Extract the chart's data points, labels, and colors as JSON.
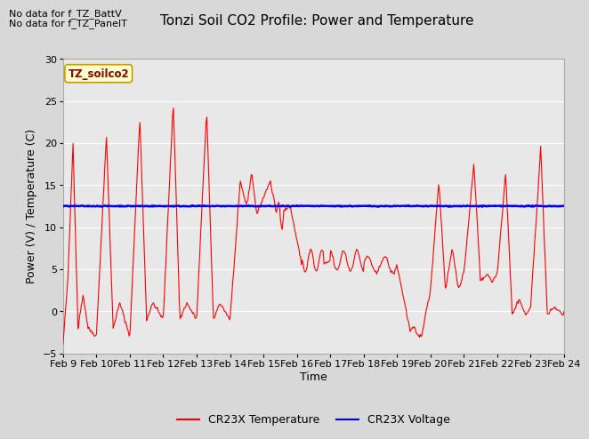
{
  "title": "Tonzi Soil CO2 Profile: Power and Temperature",
  "ylabel": "Power (V) / Temperature (C)",
  "xlabel": "Time",
  "ylim": [
    -5,
    30
  ],
  "yticks": [
    -5,
    0,
    5,
    10,
    15,
    20,
    25,
    30
  ],
  "xtick_labels": [
    "Feb 9",
    "Feb 10",
    "Feb 11",
    "Feb 12",
    "Feb 13",
    "Feb 14",
    "Feb 15",
    "Feb 16",
    "Feb 17",
    "Feb 18",
    "Feb 19",
    "Feb 20",
    "Feb 21",
    "Feb 22",
    "Feb 23",
    "Feb 24"
  ],
  "legend_labels": [
    "CR23X Temperature",
    "CR23X Voltage"
  ],
  "no_data_text1": "No data for f_TZ_BattV",
  "no_data_text2": "No data for f_TZ_PanelT",
  "box_label": "TZ_soilco2",
  "voltage_value": 12.5,
  "bg_color": "#d8d8d8",
  "plot_bg_color": "#e8e8e8",
  "title_fontsize": 11,
  "axis_fontsize": 9,
  "tick_fontsize": 8,
  "nodata_fontsize": 8
}
